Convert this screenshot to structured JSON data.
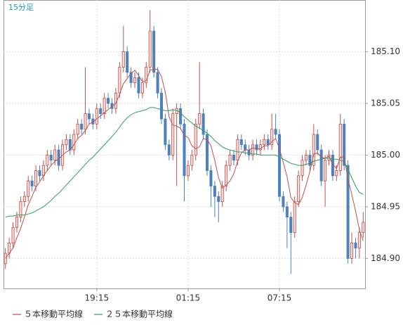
{
  "chart_data": {
    "type": "candlestick",
    "subtitle": "15分足",
    "categories": [
      null,
      null,
      null,
      null,
      null,
      null,
      null,
      null,
      null,
      null,
      null,
      null,
      null,
      null,
      null,
      null,
      null,
      null,
      null,
      null,
      null,
      null,
      null,
      null,
      "19:15",
      null,
      null,
      null,
      null,
      null,
      null,
      null,
      null,
      null,
      null,
      null,
      null,
      null,
      null,
      null,
      null,
      null,
      null,
      null,
      null,
      null,
      null,
      null,
      "01:15",
      null,
      null,
      null,
      null,
      null,
      null,
      null,
      null,
      null,
      null,
      null,
      null,
      null,
      null,
      null,
      null,
      null,
      null,
      null,
      null,
      null,
      null,
      null,
      "07:15",
      null,
      null,
      null,
      null,
      null,
      null,
      null,
      null,
      null,
      null,
      null,
      null,
      null,
      null,
      null,
      null,
      null,
      null,
      null,
      null,
      null,
      null
    ],
    "ohlc": {
      "open": [
        184.895,
        184.905,
        184.915,
        184.93,
        184.94,
        184.955,
        184.96,
        184.975,
        184.97,
        184.985,
        184.98,
        184.99,
        185.0,
        184.995,
        185.005,
        184.99,
        185.01,
        185.015,
        185.005,
        185.02,
        185.03,
        185.025,
        185.04,
        185.035,
        185.03,
        185.045,
        185.04,
        185.055,
        185.05,
        185.045,
        185.06,
        185.085,
        185.1,
        185.08,
        185.07,
        185.075,
        185.06,
        185.07,
        185.085,
        185.12,
        185.08,
        185.06,
        185.035,
        185.01,
        185.0,
        185.04,
        185.045,
        185.03,
        184.98,
        184.99,
        185.0,
        185.03,
        185.04,
        185.02,
        184.985,
        184.97,
        184.96,
        184.955,
        184.97,
        184.99,
        185.0,
        184.995,
        185.015,
        185.01,
        185.005,
        185.0,
        185.01,
        185.005,
        185.01,
        185.015,
        185.01,
        185.025,
        185.02,
        184.96,
        184.95,
        184.94,
        184.925,
        184.955,
        184.98,
        184.995,
        185.0,
        184.99,
        185.02,
        185.005,
        184.975,
        184.995,
        185.0,
        184.98,
        184.985,
        185.03,
        184.99,
        184.9,
        184.915,
        184.91,
        184.925
      ],
      "high": [
        184.91,
        184.92,
        184.935,
        184.945,
        184.96,
        184.965,
        184.98,
        184.98,
        184.99,
        184.99,
        184.995,
        185.005,
        185.005,
        185.01,
        185.01,
        185.015,
        185.02,
        185.02,
        185.025,
        185.035,
        185.035,
        185.085,
        185.045,
        185.04,
        185.05,
        185.05,
        185.06,
        185.06,
        185.055,
        185.065,
        185.09,
        185.125,
        185.105,
        185.085,
        185.08,
        185.08,
        185.075,
        185.09,
        185.14,
        185.125,
        185.085,
        185.065,
        185.04,
        185.015,
        185.045,
        185.05,
        185.05,
        185.035,
        184.995,
        185.005,
        185.035,
        185.09,
        185.045,
        185.025,
        184.99,
        184.975,
        184.965,
        184.975,
        184.995,
        185.005,
        185.005,
        185.02,
        185.02,
        185.015,
        185.01,
        185.015,
        185.015,
        185.015,
        185.02,
        185.02,
        185.04,
        185.04,
        185.025,
        184.965,
        184.955,
        184.945,
        184.96,
        184.985,
        185.0,
        185.005,
        185.005,
        185.03,
        185.025,
        185.01,
        185.0,
        185.005,
        185.005,
        184.99,
        185.04,
        185.035,
        184.995,
        184.925,
        184.92,
        184.93,
        184.945
      ],
      "low": [
        184.89,
        184.9,
        184.91,
        184.925,
        184.935,
        184.95,
        184.955,
        184.965,
        184.965,
        184.975,
        184.975,
        184.985,
        184.99,
        184.99,
        184.985,
        184.985,
        185.005,
        185.0,
        185.0,
        185.015,
        185.02,
        185.02,
        185.03,
        185.025,
        185.025,
        185.035,
        185.035,
        185.045,
        185.04,
        185.04,
        185.055,
        185.08,
        185.075,
        185.065,
        185.065,
        185.055,
        185.055,
        185.065,
        185.08,
        185.075,
        185.055,
        185.03,
        185.005,
        184.995,
        184.995,
        184.97,
        185.025,
        184.955,
        184.975,
        184.985,
        184.995,
        185.025,
        185.015,
        184.98,
        184.95,
        184.94,
        184.935,
        184.95,
        184.965,
        184.985,
        184.99,
        184.99,
        185.005,
        185.0,
        184.995,
        184.995,
        185.0,
        185.0,
        185.005,
        185.005,
        185.005,
        185.015,
        184.955,
        184.945,
        184.91,
        184.885,
        184.92,
        184.95,
        184.975,
        184.99,
        184.985,
        184.985,
        185.0,
        184.97,
        184.95,
        184.99,
        184.975,
        184.975,
        184.98,
        184.985,
        184.895,
        184.895,
        184.9,
        184.9,
        184.92
      ],
      "close": [
        184.905,
        184.915,
        184.93,
        184.94,
        184.955,
        184.96,
        184.975,
        184.97,
        184.985,
        184.98,
        184.99,
        185.0,
        184.995,
        185.005,
        184.99,
        185.01,
        185.015,
        185.005,
        185.02,
        185.03,
        185.025,
        185.04,
        185.035,
        185.03,
        185.045,
        185.04,
        185.055,
        185.05,
        185.045,
        185.06,
        185.085,
        185.1,
        185.08,
        185.07,
        185.075,
        185.06,
        185.07,
        185.085,
        185.12,
        185.08,
        185.06,
        185.035,
        185.01,
        185.0,
        185.04,
        185.045,
        185.03,
        184.98,
        184.99,
        185.0,
        185.03,
        185.04,
        185.02,
        184.985,
        184.97,
        184.96,
        184.955,
        184.97,
        184.99,
        185.0,
        184.995,
        185.015,
        185.01,
        185.005,
        185.0,
        185.01,
        185.005,
        185.01,
        185.015,
        185.01,
        185.025,
        185.02,
        184.96,
        184.95,
        184.94,
        184.925,
        184.955,
        184.98,
        184.995,
        185.0,
        184.99,
        185.02,
        185.005,
        184.975,
        184.995,
        185.0,
        184.98,
        184.985,
        185.03,
        184.99,
        184.9,
        184.915,
        184.91,
        184.925,
        184.935
      ],
      "up_color": "#c0504d",
      "down_color": "#4f81bd"
    },
    "series": [
      {
        "name": "５本移動平均線",
        "color": "#c0504d",
        "values": [
          184.9,
          184.905,
          184.91,
          184.92,
          184.929,
          184.94,
          184.952,
          184.96,
          184.969,
          184.974,
          184.98,
          184.985,
          184.99,
          184.994,
          184.996,
          185.0,
          185.003,
          185.005,
          185.01,
          185.016,
          185.019,
          185.024,
          185.03,
          185.032,
          185.035,
          185.038,
          185.041,
          185.044,
          185.047,
          185.05,
          185.059,
          185.069,
          185.074,
          185.079,
          185.082,
          185.077,
          185.071,
          185.072,
          185.082,
          185.083,
          185.083,
          185.076,
          185.061,
          185.037,
          185.029,
          185.028,
          185.026,
          185.019,
          185.017,
          185.009,
          185.006,
          185.008,
          185.016,
          185.015,
          185.009,
          184.995,
          184.978,
          184.968,
          184.971,
          184.975,
          184.982,
          184.994,
          185.002,
          185.005,
          185.005,
          185.007,
          185.006,
          185.006,
          185.009,
          185.009,
          185.013,
          185.016,
          185.006,
          184.993,
          184.979,
          184.959,
          184.954,
          184.952,
          184.959,
          184.971,
          184.984,
          185.001,
          185.002,
          184.998,
          184.997,
          184.999,
          184.991,
          184.987,
          184.998,
          184.998,
          184.977,
          184.962,
          184.946,
          184.928,
          184.917
        ]
      },
      {
        "name": "２５本移動平均線",
        "color": "#2ca05a",
        "values": [
          184.94,
          184.941,
          184.941,
          184.942,
          184.942,
          184.942,
          184.943,
          184.944,
          184.946,
          184.948,
          184.95,
          184.953,
          184.956,
          184.96,
          184.963,
          184.967,
          184.971,
          184.975,
          184.979,
          184.983,
          184.987,
          184.991,
          184.995,
          184.998,
          185.002,
          185.006,
          185.01,
          185.014,
          185.018,
          185.022,
          185.027,
          185.032,
          185.036,
          185.039,
          185.041,
          185.042,
          185.043,
          185.044,
          185.046,
          185.046,
          185.045,
          185.044,
          185.043,
          185.043,
          185.044,
          185.043,
          185.041,
          185.037,
          185.034,
          185.031,
          185.028,
          185.026,
          185.024,
          185.021,
          185.018,
          185.014,
          185.011,
          185.008,
          185.006,
          185.005,
          185.004,
          185.003,
          185.003,
          185.002,
          185.002,
          185.001,
          185.001,
          185.0,
          185.0,
          185.0,
          185.0,
          185.0,
          184.998,
          184.996,
          184.994,
          184.992,
          184.991,
          184.99,
          184.99,
          184.991,
          184.992,
          184.994,
          184.995,
          184.996,
          184.997,
          184.997,
          184.996,
          184.996,
          184.995,
          184.994,
          184.986,
          184.978,
          184.97,
          184.964,
          184.962
        ]
      }
    ],
    "ylim": [
      184.871,
      185.15
    ],
    "yticks": [
      {
        "value": 184.9,
        "label": "184.90"
      },
      184.95,
      {
        "value": 185,
        "label": "185.00"
      },
      185.05,
      {
        "value": 185.1,
        "label": "185.10"
      }
    ],
    "grid": true
  }
}
